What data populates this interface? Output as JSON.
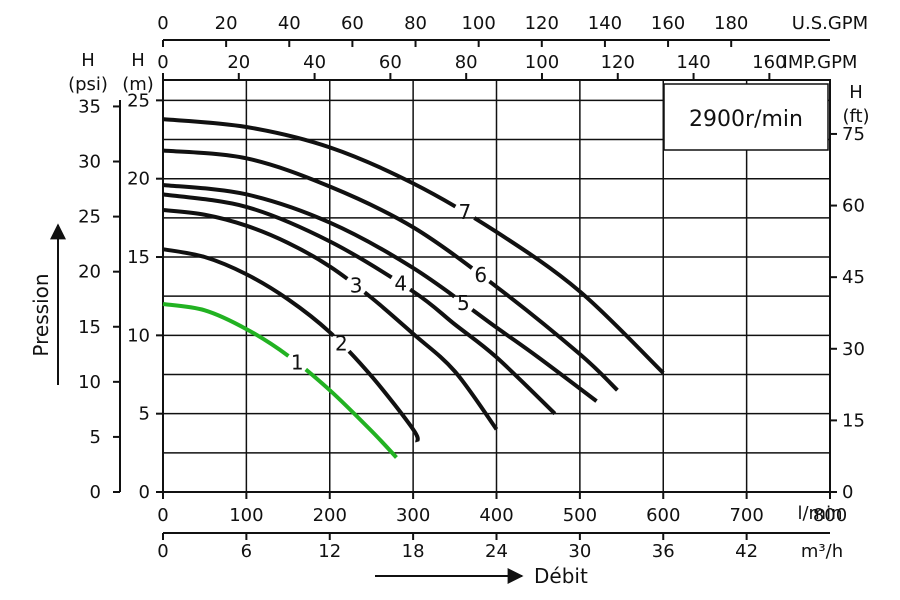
{
  "chart_data": {
    "type": "line",
    "speed_label": "2900r/min",
    "axes": {
      "flow_lmin": {
        "unit": "l/min",
        "ticks": [
          "0",
          "100",
          "200",
          "300",
          "400",
          "500",
          "600",
          "700",
          "800"
        ],
        "range": [
          0,
          800
        ]
      },
      "flow_m3h": {
        "unit": "m³/h",
        "ticks": [
          "0",
          "6",
          "12",
          "18",
          "24",
          "30",
          "36",
          "42"
        ],
        "range": [
          0,
          48
        ]
      },
      "flow_usgpm": {
        "unit": "U.S.GPM",
        "ticks": [
          "0",
          "20",
          "40",
          "60",
          "80",
          "100",
          "120",
          "140",
          "160",
          "180"
        ],
        "range": [
          0,
          211.3
        ]
      },
      "flow_impgpm": {
        "unit": "IMP.GPM",
        "ticks": [
          "0",
          "20",
          "40",
          "60",
          "80",
          "100",
          "120",
          "140",
          "160"
        ],
        "range": [
          0,
          176
        ]
      },
      "head_m": {
        "label_top": "H",
        "label_unit": "(m)",
        "ticks": [
          "0",
          "5",
          "10",
          "15",
          "20",
          "25"
        ],
        "range": [
          0,
          26.3
        ]
      },
      "head_psi": {
        "label_top": "H",
        "label_unit": "(psi)",
        "ticks": [
          "0",
          "5",
          "10",
          "15",
          "20",
          "25",
          "30",
          "35"
        ],
        "range": [
          0,
          37.4
        ]
      },
      "head_ft": {
        "label_top": "H",
        "label_unit": "(ft)",
        "ticks": [
          "0",
          "15",
          "30",
          "45",
          "60",
          "75"
        ],
        "range": [
          0,
          86.3
        ]
      }
    },
    "direction_labels": {
      "flow": "Débit",
      "pressure": "Pression"
    },
    "series": [
      {
        "name": "1",
        "color": "#22b222",
        "x": [
          0,
          50,
          100,
          150,
          200,
          250,
          280
        ],
        "y": [
          12.0,
          11.6,
          10.4,
          8.7,
          6.5,
          3.9,
          2.2
        ]
      },
      {
        "name": "2",
        "color": "#111111",
        "x": [
          0,
          50,
          100,
          150,
          200,
          250,
          300,
          305
        ],
        "y": [
          15.5,
          15.0,
          13.9,
          12.3,
          10.2,
          7.4,
          4.0,
          3.2
        ]
      },
      {
        "name": "3",
        "color": "#111111",
        "x": [
          0,
          50,
          100,
          150,
          200,
          250,
          300,
          350,
          400
        ],
        "y": [
          18.0,
          17.7,
          17.0,
          15.9,
          14.4,
          12.4,
          10.1,
          7.7,
          4.0
        ]
      },
      {
        "name": "4",
        "color": "#111111",
        "x": [
          0,
          100,
          200,
          300,
          350,
          400,
          470
        ],
        "y": [
          19.0,
          18.2,
          16.0,
          12.8,
          10.7,
          8.6,
          5.0
        ]
      },
      {
        "name": "5",
        "color": "#111111",
        "x": [
          0,
          100,
          200,
          300,
          400,
          450,
          520
        ],
        "y": [
          19.6,
          19.0,
          17.2,
          14.3,
          10.5,
          8.6,
          5.8
        ]
      },
      {
        "name": "6",
        "color": "#111111",
        "x": [
          0,
          100,
          200,
          300,
          400,
          500,
          545
        ],
        "y": [
          21.8,
          21.3,
          19.5,
          16.9,
          13.1,
          8.8,
          6.5
        ]
      },
      {
        "name": "7",
        "color": "#111111",
        "x": [
          0,
          100,
          200,
          300,
          400,
          500,
          600
        ],
        "y": [
          23.8,
          23.3,
          22.0,
          19.7,
          16.6,
          12.8,
          7.6
        ]
      }
    ],
    "grid": true
  }
}
